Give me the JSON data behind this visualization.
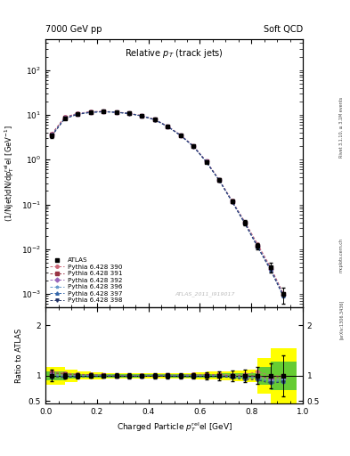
{
  "title_left": "7000 GeV pp",
  "title_right": "Soft QCD",
  "plot_title": "Relative $p_T$ (track jets)",
  "ylabel_main": "(1/Njet)dN/dp$^{\\rm rel}_{T}$el [GeV$^{-1}$]",
  "ylabel_ratio": "Ratio to ATLAS",
  "xlabel": "Charged Particle $p^{\\rm rel}_{T}$el [GeV]",
  "watermark": "ATLAS_2011_I919017",
  "right_label_top": "Rivet 3.1.10, ≥ 3.1M events",
  "right_label_mid": "mcplots.cern.ch",
  "right_label_bot": "[arXiv:1306.3436]",
  "xdata": [
    0.025,
    0.075,
    0.125,
    0.175,
    0.225,
    0.275,
    0.325,
    0.375,
    0.425,
    0.475,
    0.525,
    0.575,
    0.625,
    0.675,
    0.725,
    0.775,
    0.825,
    0.875,
    0.925
  ],
  "atlas_y": [
    3.5,
    8.5,
    10.5,
    11.5,
    11.8,
    11.5,
    10.8,
    9.5,
    7.8,
    5.5,
    3.5,
    2.0,
    0.9,
    0.35,
    0.12,
    0.04,
    0.012,
    0.004,
    0.001
  ],
  "atlas_yerr": [
    0.4,
    0.5,
    0.5,
    0.5,
    0.5,
    0.5,
    0.5,
    0.4,
    0.4,
    0.3,
    0.2,
    0.12,
    0.07,
    0.03,
    0.012,
    0.005,
    0.002,
    0.001,
    0.0004
  ],
  "pythia390_y": [
    3.8,
    9.0,
    10.8,
    11.8,
    12.0,
    11.6,
    10.9,
    9.6,
    7.9,
    5.6,
    3.55,
    2.05,
    0.92,
    0.36,
    0.122,
    0.041,
    0.013,
    0.004,
    0.001
  ],
  "pythia391_y": [
    3.7,
    8.8,
    10.7,
    11.7,
    11.9,
    11.5,
    10.8,
    9.5,
    7.85,
    5.55,
    3.52,
    2.02,
    0.91,
    0.355,
    0.12,
    0.04,
    0.012,
    0.0038,
    0.001
  ],
  "pythia392_y": [
    3.6,
    8.6,
    10.6,
    11.6,
    11.85,
    11.48,
    10.78,
    9.48,
    7.82,
    5.52,
    3.51,
    2.01,
    0.905,
    0.352,
    0.119,
    0.039,
    0.0118,
    0.0037,
    0.00095
  ],
  "pythia396_y": [
    3.55,
    8.4,
    10.5,
    11.5,
    11.82,
    11.45,
    10.75,
    9.45,
    7.8,
    5.5,
    3.5,
    2.0,
    0.9,
    0.35,
    0.118,
    0.039,
    0.0115,
    0.0036,
    0.00092
  ],
  "pythia397_y": [
    3.5,
    8.3,
    10.4,
    11.4,
    11.78,
    11.42,
    10.72,
    9.42,
    7.78,
    5.48,
    3.48,
    1.98,
    0.895,
    0.348,
    0.117,
    0.038,
    0.0113,
    0.0035,
    0.0009
  ],
  "pythia398_y": [
    3.4,
    8.2,
    10.3,
    11.3,
    11.75,
    11.4,
    10.7,
    9.4,
    7.75,
    5.45,
    3.45,
    1.96,
    0.89,
    0.345,
    0.115,
    0.037,
    0.011,
    0.0034,
    0.00088
  ],
  "atlas_band_yellow": [
    0.18,
    0.12,
    0.08,
    0.07,
    0.06,
    0.06,
    0.06,
    0.05,
    0.05,
    0.05,
    0.06,
    0.06,
    0.07,
    0.08,
    0.09,
    0.1,
    0.12,
    0.35,
    0.55
  ],
  "atlas_band_green": [
    0.09,
    0.06,
    0.04,
    0.035,
    0.03,
    0.03,
    0.03,
    0.025,
    0.025,
    0.025,
    0.03,
    0.03,
    0.035,
    0.04,
    0.045,
    0.05,
    0.06,
    0.18,
    0.28
  ],
  "colors": {
    "pythia390": "#cc6677",
    "pythia391": "#993344",
    "pythia392": "#9966bb",
    "pythia396": "#6699cc",
    "pythia397": "#3366aa",
    "pythia398": "#223366"
  },
  "markers": {
    "pythia390": "o",
    "pythia391": "s",
    "pythia392": "D",
    "pythia396": "*",
    "pythia397": "^",
    "pythia398": "v"
  },
  "xlim": [
    0.0,
    1.0
  ],
  "ylim_main": [
    0.0005,
    500.0
  ],
  "ylim_ratio": [
    0.45,
    2.35
  ],
  "ratio_yticks": [
    0.5,
    1.0,
    2.0
  ]
}
